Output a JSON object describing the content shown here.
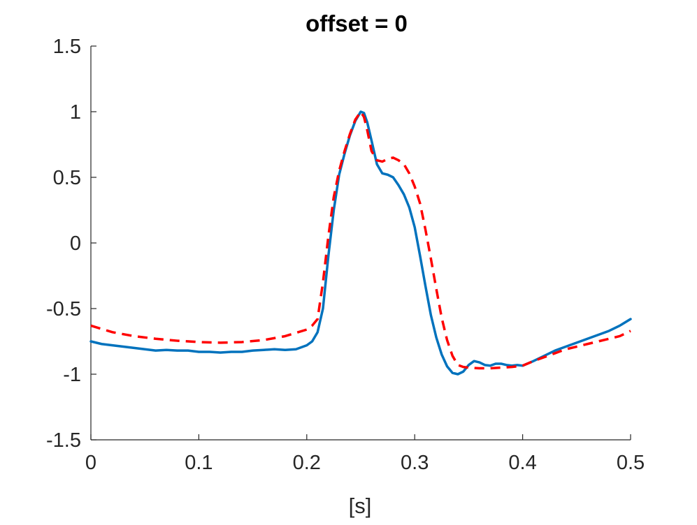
{
  "chart_data": {
    "type": "line",
    "title": "offset = 0",
    "xlabel": "[s]",
    "ylabel": "",
    "xlim": [
      0,
      0.5
    ],
    "ylim": [
      -1.5,
      1.5
    ],
    "xticks": [
      0,
      0.1,
      0.2,
      0.3,
      0.4,
      0.5
    ],
    "xtick_labels": [
      "0",
      "0.1",
      "0.2",
      "0.3",
      "0.4",
      "0.5"
    ],
    "yticks": [
      -1.5,
      -1,
      -0.5,
      0,
      0.5,
      1,
      1.5
    ],
    "ytick_labels": [
      "-1.5",
      "-1",
      "-0.5",
      "0",
      "0.5",
      "1",
      "1.5"
    ],
    "grid": false,
    "legend": "none",
    "series": [
      {
        "color": "#0072BD",
        "style": "solid",
        "x": [
          0,
          0.01,
          0.02,
          0.03,
          0.04,
          0.05,
          0.06,
          0.07,
          0.08,
          0.09,
          0.1,
          0.11,
          0.12,
          0.13,
          0.14,
          0.15,
          0.16,
          0.17,
          0.18,
          0.19,
          0.2,
          0.205,
          0.21,
          0.215,
          0.22,
          0.225,
          0.23,
          0.235,
          0.24,
          0.245,
          0.25,
          0.253,
          0.256,
          0.26,
          0.265,
          0.27,
          0.275,
          0.28,
          0.285,
          0.29,
          0.295,
          0.3,
          0.305,
          0.31,
          0.315,
          0.32,
          0.325,
          0.33,
          0.335,
          0.34,
          0.345,
          0.35,
          0.355,
          0.36,
          0.365,
          0.37,
          0.375,
          0.38,
          0.385,
          0.39,
          0.395,
          0.4,
          0.41,
          0.42,
          0.43,
          0.44,
          0.45,
          0.46,
          0.47,
          0.48,
          0.49,
          0.5
        ],
        "y": [
          -0.75,
          -0.77,
          -0.78,
          -0.79,
          -0.8,
          -0.81,
          -0.82,
          -0.815,
          -0.82,
          -0.82,
          -0.83,
          -0.83,
          -0.835,
          -0.83,
          -0.83,
          -0.82,
          -0.815,
          -0.81,
          -0.815,
          -0.81,
          -0.78,
          -0.75,
          -0.68,
          -0.5,
          -0.1,
          0.25,
          0.52,
          0.68,
          0.82,
          0.93,
          1.0,
          0.99,
          0.92,
          0.78,
          0.6,
          0.53,
          0.52,
          0.5,
          0.44,
          0.37,
          0.27,
          0.12,
          -0.1,
          -0.33,
          -0.55,
          -0.72,
          -0.85,
          -0.94,
          -0.99,
          -1.0,
          -0.98,
          -0.93,
          -0.9,
          -0.91,
          -0.93,
          -0.935,
          -0.92,
          -0.92,
          -0.93,
          -0.935,
          -0.93,
          -0.935,
          -0.9,
          -0.86,
          -0.82,
          -0.79,
          -0.76,
          -0.73,
          -0.7,
          -0.67,
          -0.63,
          -0.58
        ]
      },
      {
        "color": "#FF0000",
        "style": "dashed",
        "x": [
          0,
          0.02,
          0.04,
          0.06,
          0.08,
          0.1,
          0.12,
          0.14,
          0.16,
          0.18,
          0.2,
          0.205,
          0.21,
          0.215,
          0.22,
          0.225,
          0.23,
          0.235,
          0.24,
          0.245,
          0.25,
          0.253,
          0.256,
          0.26,
          0.265,
          0.27,
          0.275,
          0.28,
          0.285,
          0.29,
          0.295,
          0.3,
          0.305,
          0.31,
          0.315,
          0.32,
          0.325,
          0.33,
          0.335,
          0.34,
          0.345,
          0.35,
          0.36,
          0.37,
          0.38,
          0.39,
          0.4,
          0.41,
          0.42,
          0.43,
          0.44,
          0.45,
          0.46,
          0.47,
          0.48,
          0.49,
          0.5
        ],
        "y": [
          -0.63,
          -0.68,
          -0.71,
          -0.73,
          -0.745,
          -0.755,
          -0.76,
          -0.755,
          -0.74,
          -0.71,
          -0.66,
          -0.63,
          -0.58,
          -0.3,
          0.05,
          0.35,
          0.55,
          0.7,
          0.83,
          0.94,
          1.0,
          0.96,
          0.86,
          0.7,
          0.63,
          0.62,
          0.64,
          0.65,
          0.63,
          0.6,
          0.53,
          0.43,
          0.3,
          0.1,
          -0.12,
          -0.35,
          -0.57,
          -0.74,
          -0.86,
          -0.93,
          -0.945,
          -0.95,
          -0.955,
          -0.955,
          -0.95,
          -0.945,
          -0.935,
          -0.9,
          -0.87,
          -0.84,
          -0.81,
          -0.79,
          -0.77,
          -0.75,
          -0.73,
          -0.71,
          -0.67
        ]
      }
    ]
  }
}
